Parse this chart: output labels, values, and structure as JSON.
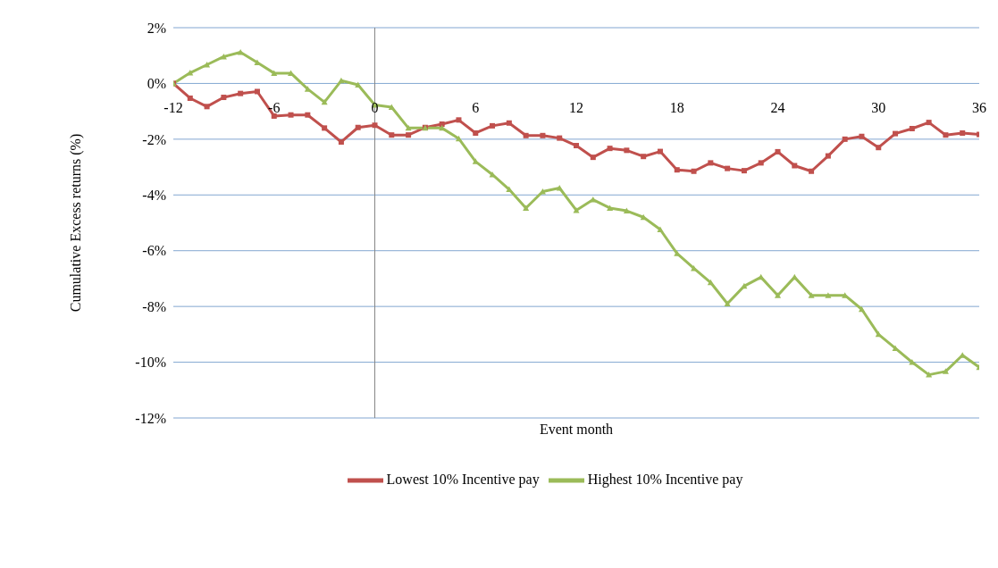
{
  "chart_data": {
    "type": "line",
    "xlabel": "Event month",
    "ylabel": "Cumulative Excess returns (%)",
    "x": [
      -12,
      -11,
      -10,
      -9,
      -8,
      -7,
      -6,
      -5,
      -4,
      -3,
      -2,
      -1,
      0,
      1,
      2,
      3,
      4,
      5,
      6,
      7,
      8,
      9,
      10,
      11,
      12,
      13,
      14,
      15,
      16,
      17,
      18,
      19,
      20,
      21,
      22,
      23,
      24,
      25,
      26,
      27,
      28,
      29,
      30,
      31,
      32,
      33,
      34,
      35,
      36
    ],
    "series": [
      {
        "name": "Lowest 10% Incentive pay",
        "color": "#c0504d",
        "marker": "square",
        "values": [
          0,
          -0.53,
          -0.83,
          -0.5,
          -0.36,
          -0.29,
          -1.17,
          -1.13,
          -1.13,
          -1.6,
          -2.1,
          -1.58,
          -1.5,
          -1.85,
          -1.85,
          -1.58,
          -1.46,
          -1.31,
          -1.78,
          -1.52,
          -1.42,
          -1.87,
          -1.87,
          -1.96,
          -2.23,
          -2.65,
          -2.33,
          -2.4,
          -2.62,
          -2.44,
          -3.1,
          -3.15,
          -2.85,
          -3.05,
          -3.13,
          -2.85,
          -2.45,
          -2.95,
          -3.15,
          -2.6,
          -2.0,
          -1.9,
          -2.3,
          -1.8,
          -1.62,
          -1.4,
          -1.85,
          -1.78,
          -1.83
        ]
      },
      {
        "name": "Highest 10% Incentive pay",
        "color": "#9bbb59",
        "marker": "triangle",
        "values": [
          0,
          0.38,
          0.67,
          0.96,
          1.12,
          0.75,
          0.37,
          0.37,
          -0.2,
          -0.67,
          0.1,
          -0.05,
          -0.77,
          -0.85,
          -1.6,
          -1.6,
          -1.6,
          -1.98,
          -2.8,
          -3.27,
          -3.8,
          -4.47,
          -3.88,
          -3.75,
          -4.55,
          -4.17,
          -4.47,
          -4.57,
          -4.8,
          -5.24,
          -6.1,
          -6.63,
          -7.14,
          -7.9,
          -7.27,
          -6.95,
          -7.6,
          -6.95,
          -7.6,
          -7.6,
          -7.6,
          -8.1,
          -9.0,
          -9.5,
          -10.0,
          -10.45,
          -10.33,
          -9.75,
          -10.18
        ]
      }
    ],
    "xlim": [
      -12,
      36
    ],
    "xticks": [
      -12,
      -6,
      0,
      6,
      12,
      18,
      24,
      30,
      36
    ],
    "ylim": [
      -12,
      2
    ],
    "yticks": [
      {
        "value": -12,
        "label": "-12%"
      },
      {
        "value": -10,
        "label": "-10%"
      },
      {
        "value": -8,
        "label": "-8%"
      },
      {
        "value": -6,
        "label": "-6%"
      },
      {
        "value": -4,
        "label": "-4%"
      },
      {
        "value": -2,
        "label": "-2%"
      },
      {
        "value": 0,
        "label": "0%"
      },
      {
        "value": 2,
        "label": "2%"
      }
    ],
    "ref_lines": [
      {
        "axis": "x",
        "value": 0,
        "color": "#868686"
      }
    ],
    "grid": "y",
    "legend": "bottom",
    "line_style": "solid"
  }
}
